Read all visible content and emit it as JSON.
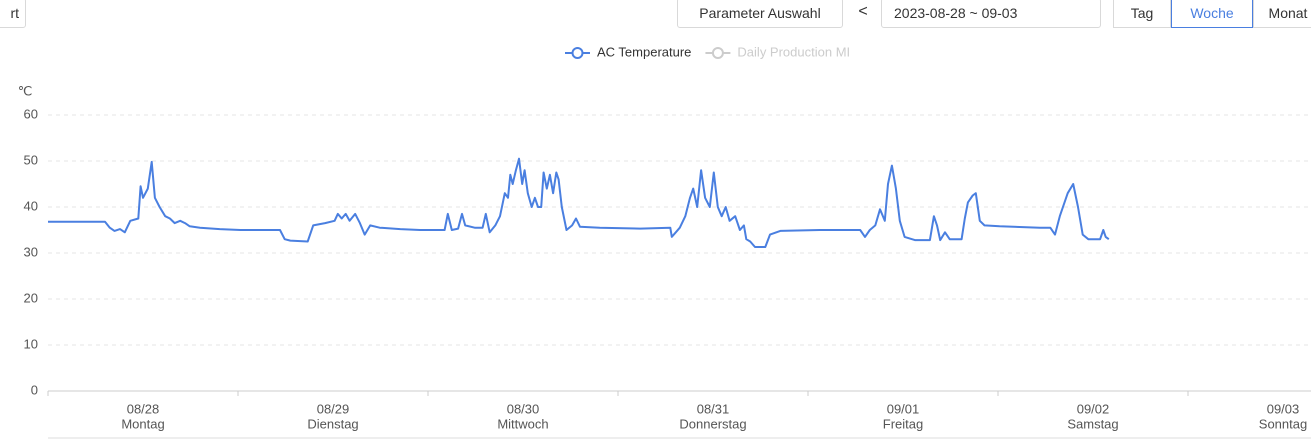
{
  "toolbar": {
    "left_button": "rt",
    "parameter_button": "Parameter Auswahl",
    "prev": "<",
    "date_range": "2023-08-28 ~ 09-03",
    "period_tabs": [
      "Tag",
      "Woche",
      "Monat"
    ],
    "active_tab_index": 1
  },
  "chart_data": {
    "type": "line",
    "legend": [
      {
        "name": "AC Temperature",
        "color": "#4a7fe0",
        "active": true
      },
      {
        "name": "Daily Production MI",
        "color": "#cccccc",
        "active": false
      }
    ],
    "y_unit": "℃",
    "categories": [
      "08/28",
      "08/29",
      "08/30",
      "08/31",
      "09/01",
      "09/02",
      "09/03"
    ],
    "weekdays": [
      "Montag",
      "Dienstag",
      "Mittwoch",
      "Donnerstag",
      "Freitag",
      "Samstag",
      "Sonntag"
    ],
    "xlim": [
      0,
      168
    ],
    "xticks": [
      0,
      24,
      48,
      72,
      96,
      120,
      144,
      168
    ],
    "ylim": [
      0,
      60
    ],
    "yticks": [
      0,
      10,
      20,
      30,
      40,
      50,
      60
    ],
    "grid": true,
    "series": [
      {
        "name": "AC Temperature",
        "color": "#4a7fe0",
        "x": [
          0,
          7.2,
          7.8,
          8.4,
          9.1,
          9.7,
          10.4,
          11.4,
          11.7,
          12.0,
          12.6,
          13.1,
          13.5,
          14.1,
          14.8,
          15.4,
          16.0,
          16.7,
          17.3,
          17.9,
          19.2,
          21.7,
          24.3,
          29.3,
          29.9,
          30.6,
          32.8,
          33.5,
          35.0,
          36.2,
          36.6,
          37.1,
          37.6,
          38.1,
          38.8,
          39.4,
          40.0,
          40.7,
          41.9,
          44.5,
          47.0,
          50.1,
          50.5,
          51.0,
          51.8,
          52.3,
          52.7,
          53.9,
          54.9,
          55.3,
          55.8,
          56.5,
          57.1,
          57.7,
          58.1,
          58.4,
          58.7,
          59.1,
          59.5,
          59.9,
          60.2,
          60.6,
          61.1,
          61.5,
          61.9,
          62.3,
          62.6,
          63.0,
          63.4,
          63.8,
          64.2,
          64.5,
          64.9,
          65.5,
          66.2,
          66.7,
          67.2,
          69.7,
          74.8,
          78.6,
          78.8,
          79.3,
          79.8,
          80.5,
          81.1,
          81.5,
          82.0,
          82.5,
          83.0,
          83.6,
          84.1,
          84.6,
          85.1,
          85.6,
          86.1,
          86.8,
          87.4,
          87.9,
          88.2,
          88.7,
          89.3,
          90.6,
          91.2,
          92.5,
          97.5,
          102.6,
          103.2,
          103.8,
          104.5,
          105.1,
          105.7,
          106.1,
          106.6,
          107.1,
          107.6,
          108.2,
          109.5,
          111.4,
          111.9,
          112.3,
          112.7,
          113.3,
          113.9,
          115.4,
          115.8,
          116.2,
          116.8,
          117.2,
          117.7,
          118.3,
          120.2,
          125.3,
          126.6,
          127.2,
          127.8,
          128.8,
          129.5,
          130.1,
          130.7,
          131.4,
          132.9,
          133.3,
          133.6,
          134.0
        ],
        "values": [
          36.8,
          36.8,
          35.5,
          34.8,
          35.2,
          34.5,
          37,
          37.5,
          44.5,
          42,
          44,
          49.8,
          42,
          40,
          38,
          37.5,
          36.5,
          37,
          36.5,
          35.8,
          35.5,
          35.2,
          35,
          35,
          33,
          32.7,
          32.5,
          36,
          36.5,
          37,
          38.5,
          37.5,
          38.5,
          37,
          38.5,
          36.5,
          34,
          36,
          35.5,
          35.2,
          35,
          35,
          38.5,
          35,
          35.3,
          38.5,
          36,
          35.5,
          35.5,
          38.5,
          34.5,
          36,
          38,
          43,
          42,
          47,
          45,
          48,
          50.5,
          45,
          48,
          43,
          40,
          42,
          40,
          40,
          47.5,
          44,
          47,
          43,
          47.5,
          46,
          40,
          35,
          36,
          37.5,
          35.7,
          35.5,
          35.3,
          35.5,
          33.5,
          34.5,
          35.5,
          38,
          42,
          44,
          40,
          48,
          42,
          40,
          47.5,
          40,
          38,
          40,
          37,
          38,
          35,
          36,
          33,
          32.5,
          31.3,
          31.3,
          34,
          34.8,
          35,
          35,
          33.5,
          35,
          36,
          39.5,
          37,
          45,
          49,
          44,
          37,
          33.5,
          32.8,
          32.8,
          38,
          36,
          32.8,
          34.5,
          33,
          33,
          37.5,
          41,
          42.5,
          43,
          37,
          36,
          35.8,
          35.5,
          35.5,
          34,
          38,
          43,
          45,
          40,
          34,
          33,
          33,
          35,
          33.5,
          33
        ]
      }
    ]
  }
}
